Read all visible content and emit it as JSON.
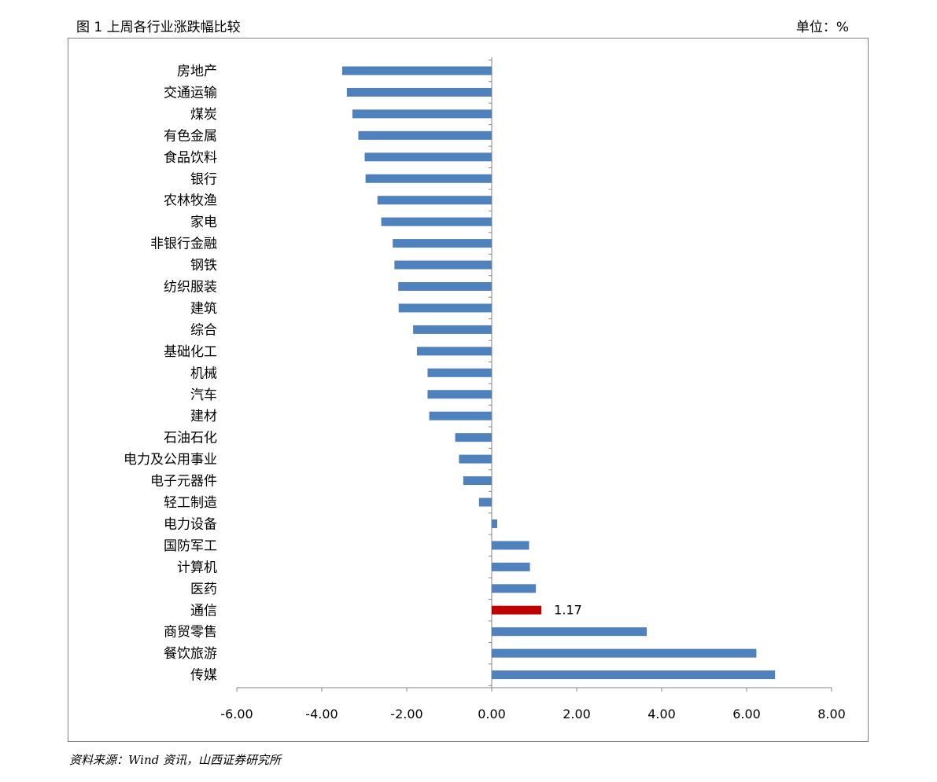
{
  "figure": {
    "title": "图 1 上周各行业涨跌幅比较",
    "unit": "单位：%",
    "source": "资料来源：Wind 资讯，山西证券研究所"
  },
  "chart_data": {
    "type": "bar",
    "orientation": "horizontal",
    "categories": [
      "房地产",
      "交通运输",
      "煤炭",
      "有色金属",
      "食品饮料",
      "银行",
      "农林牧渔",
      "家电",
      "非银行金融",
      "钢铁",
      "纺织服装",
      "建筑",
      "综合",
      "基础化工",
      "机械",
      "汽车",
      "建材",
      "石油石化",
      "电力及公用事业",
      "电子元器件",
      "轻工制造",
      "电力设备",
      "国防军工",
      "计算机",
      "医药",
      "通信",
      "商贸零售",
      "餐饮旅游",
      "传媒"
    ],
    "values": [
      -3.52,
      -3.41,
      -3.28,
      -3.14,
      -2.99,
      -2.97,
      -2.69,
      -2.6,
      -2.33,
      -2.29,
      -2.2,
      -2.19,
      -1.85,
      -1.76,
      -1.51,
      -1.51,
      -1.47,
      -0.86,
      -0.77,
      -0.67,
      -0.3,
      0.13,
      0.88,
      0.9,
      1.04,
      1.17,
      3.65,
      6.23,
      6.67
    ],
    "highlight": {
      "category": "通信",
      "value_label": "1.17"
    },
    "xlim": [
      -6,
      8
    ],
    "xticks": [
      -6,
      -4,
      -2,
      0,
      2,
      4,
      6,
      8
    ],
    "xtick_labels": [
      "-6.00",
      "-4.00",
      "-2.00",
      "0.00",
      "2.00",
      "4.00",
      "6.00",
      "8.00"
    ],
    "colors": {
      "bar": "#4f81bd",
      "highlight": "#c00000",
      "axis": "#868686"
    },
    "grid": false,
    "legend": "none"
  }
}
